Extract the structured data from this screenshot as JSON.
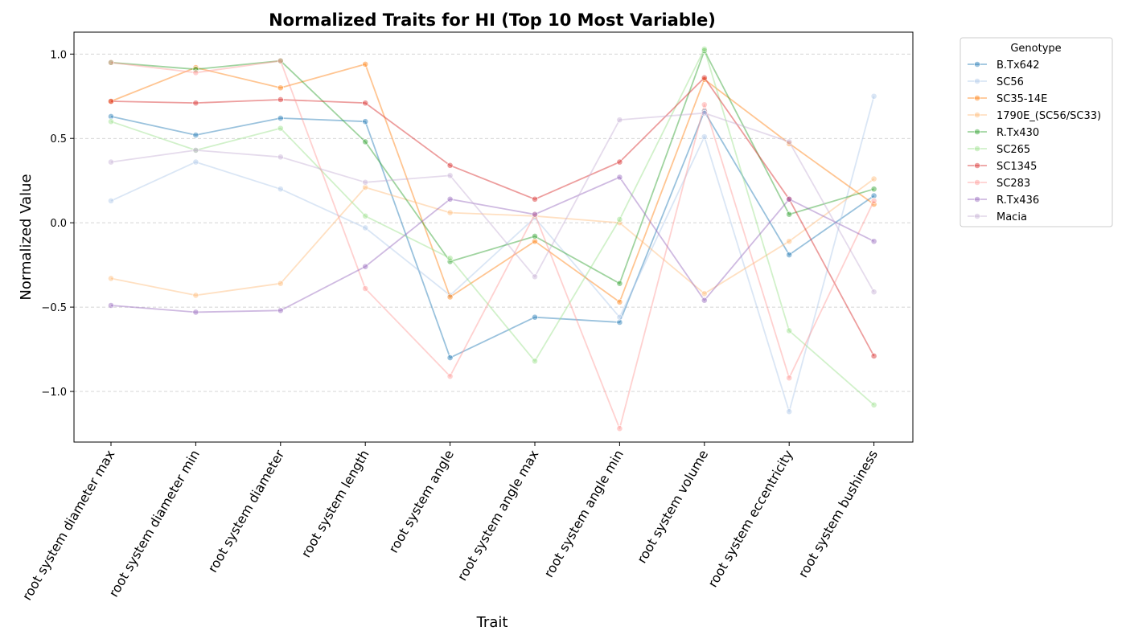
{
  "chart_data": {
    "type": "line",
    "title": "Normalized Traits for HI (Top 10 Most Variable)",
    "xlabel": "Trait",
    "ylabel": "Normalized Value",
    "ylim": [
      -1.3,
      1.13
    ],
    "yticks": [
      1.0,
      0.5,
      0.0,
      -0.5,
      -1.0
    ],
    "ytick_labels": [
      "1.0",
      "0.5",
      "0.0",
      "−0.5",
      "−1.0"
    ],
    "grid": "horizontal dashed",
    "legend_title": "Genotype",
    "legend_position": "outside-right-top",
    "categories": [
      "root system diameter max",
      "root system diameter min",
      "root system diameter",
      "root system length",
      "root system angle",
      "root system angle max",
      "root system angle min",
      "root system volume",
      "root system eccentricity",
      "root system bushiness"
    ],
    "series": [
      {
        "name": "B.Tx642",
        "color": "#1f77b4",
        "values": [
          0.63,
          0.52,
          0.62,
          0.6,
          -0.8,
          -0.56,
          -0.59,
          0.66,
          -0.19,
          0.16
        ]
      },
      {
        "name": "SC56",
        "color": "#aec7e8",
        "values": [
          0.13,
          0.36,
          0.2,
          -0.03,
          -0.43,
          0.03,
          -0.56,
          0.51,
          -1.12,
          0.75
        ]
      },
      {
        "name": "SC35-14E",
        "color": "#ff7f0e",
        "values": [
          0.72,
          0.92,
          0.8,
          0.94,
          -0.44,
          -0.11,
          -0.47,
          0.85,
          0.47,
          0.11
        ]
      },
      {
        "name": "1790E_(SC56/SC33)",
        "color": "#ffbb78",
        "values": [
          -0.33,
          -0.43,
          -0.36,
          0.21,
          0.06,
          0.04,
          0.0,
          -0.42,
          -0.11,
          0.26
        ]
      },
      {
        "name": "R.Tx430",
        "color": "#2ca02c",
        "values": [
          0.95,
          0.91,
          0.96,
          0.48,
          -0.23,
          -0.08,
          -0.36,
          1.02,
          0.05,
          0.2
        ]
      },
      {
        "name": "SC265",
        "color": "#98df8a",
        "values": [
          0.6,
          0.43,
          0.56,
          0.04,
          -0.21,
          -0.82,
          0.02,
          1.03,
          -0.64,
          -1.08
        ]
      },
      {
        "name": "SC1345",
        "color": "#d62728",
        "values": [
          0.72,
          0.71,
          0.73,
          0.71,
          0.34,
          0.14,
          0.36,
          0.86,
          0.14,
          -0.79
        ]
      },
      {
        "name": "SC283",
        "color": "#ff9896",
        "values": [
          0.95,
          0.89,
          0.96,
          -0.39,
          -0.91,
          0.05,
          -1.22,
          0.7,
          -0.92,
          0.13
        ]
      },
      {
        "name": "R.Tx436",
        "color": "#9467bd",
        "values": [
          -0.49,
          -0.53,
          -0.52,
          -0.26,
          0.14,
          0.05,
          0.27,
          -0.46,
          0.14,
          -0.11
        ]
      },
      {
        "name": "Macia",
        "color": "#c5b0d5",
        "values": [
          0.36,
          0.43,
          0.39,
          0.24,
          0.28,
          -0.32,
          0.61,
          0.65,
          0.48,
          -0.41
        ]
      }
    ]
  }
}
